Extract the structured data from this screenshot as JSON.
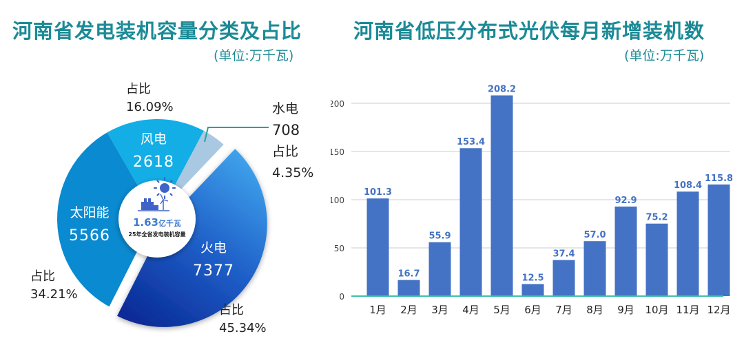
{
  "left": {
    "title": "河南省发电装机容量分类及占比",
    "unit": "(单位:万千瓦)",
    "center": {
      "value": "1.63",
      "value_unit": "亿千瓦",
      "caption": "25年全省发电装机容量",
      "icon": "factory-solar-wind-icon"
    },
    "labels": {
      "wind": {
        "name": "风电",
        "value": "2618",
        "share_label": "占比",
        "share": "16.09%"
      },
      "hydro": {
        "name": "水电",
        "value": "708",
        "share_label": "占比",
        "share": "4.35%"
      },
      "thermal": {
        "name": "火电",
        "value": "7377",
        "share_label": "占比",
        "share": "45.34%"
      },
      "solar": {
        "name": "太阳能",
        "value": "5566",
        "share_label": "占比",
        "share": "34.21%"
      }
    }
  },
  "right": {
    "title": "河南省低压分布式光伏每月新增装机数",
    "unit": "(单位:万千瓦)"
  },
  "colors": {
    "title": "#1b8a96",
    "wind": "#13aee6",
    "hydro": "#a9c8e2",
    "thermal_light": "#3a9ae6",
    "thermal_dark": "#0b2f9c",
    "solar": "#0a8ad0",
    "bar": "#4472c4",
    "bar_label": "#4472c4",
    "axis_line": "#3cc0b0",
    "grid": "#dddddd"
  },
  "chart_data": [
    {
      "type": "pie",
      "title": "河南省发电装机容量分类及占比",
      "subtitle": "(单位:万千瓦)",
      "categories": [
        "风电",
        "水电",
        "火电",
        "太阳能"
      ],
      "values": [
        2618,
        708,
        7377,
        5566
      ],
      "percentages": [
        16.09,
        4.35,
        45.34,
        34.21
      ],
      "center_annotation": "1.63亿千瓦 25年全省发电装机容量",
      "donut": true,
      "exploded": [
        "火电"
      ]
    },
    {
      "type": "bar",
      "title": "河南省低压分布式光伏每月新增装机数",
      "subtitle": "(单位:万千瓦)",
      "categories": [
        "1月",
        "2月",
        "3月",
        "4月",
        "5月",
        "6月",
        "7月",
        "8月",
        "9月",
        "10月",
        "11月",
        "12月"
      ],
      "values": [
        101.3,
        16.7,
        55.9,
        153.4,
        208.2,
        12.5,
        37.4,
        57.0,
        92.9,
        75.2,
        108.4,
        115.8
      ],
      "value_labels": [
        "101.3",
        "16.7",
        "55.9",
        "153.4",
        "208.2",
        "12.5",
        "37.4",
        "57.0",
        "92.9",
        "75.2",
        "108.4",
        "115.8"
      ],
      "xlabel": "",
      "ylabel": "",
      "ylim": [
        0,
        200
      ],
      "yticks": [
        "0",
        "50",
        "100",
        "150",
        "200"
      ],
      "grid": true,
      "legend": false
    }
  ]
}
